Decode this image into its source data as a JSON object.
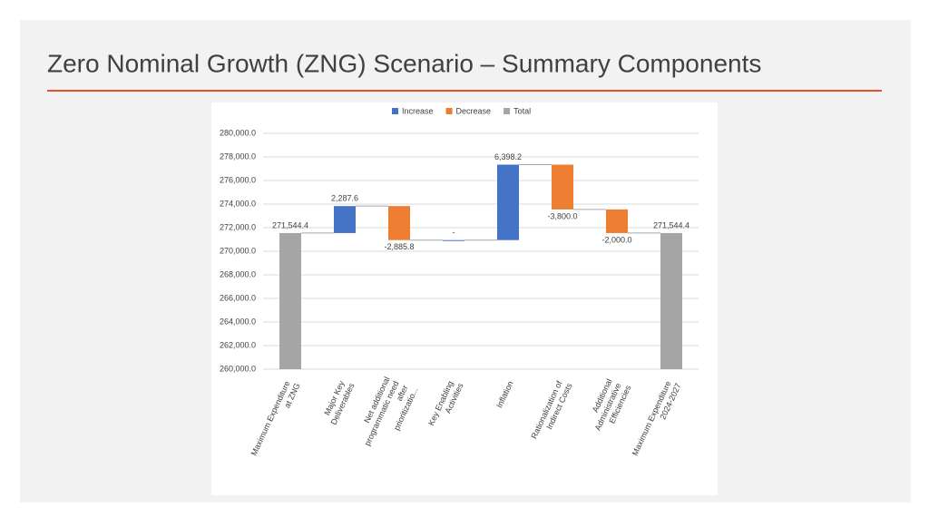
{
  "header": {
    "title": "Zero Nominal Growth (ZNG) Scenario – Summary Components"
  },
  "chart_data": {
    "type": "waterfall",
    "categories": [
      "Maximum Expenditure at ZNG",
      "Major Key Deliverables",
      "Net additional programmatic need after prioritizatio...",
      "Key Enabling Activities",
      "Inflation",
      "Rationalization of Indirect Costs",
      "Additional Administrative Efficiencies",
      "Maximum Expenditure 2024-2027"
    ],
    "series": [
      {
        "name": "Increase",
        "color": "#4472c4",
        "values": [
          null,
          2287.6,
          null,
          0,
          6398.2,
          null,
          null,
          null
        ],
        "value_labels": [
          null,
          "2,287.6",
          null,
          "-",
          "6,398.2",
          null,
          null,
          null
        ]
      },
      {
        "name": "Decrease",
        "color": "#ed7d31",
        "values": [
          null,
          null,
          -2885.8,
          null,
          null,
          -3800.0,
          -2000.0,
          null
        ],
        "value_labels": [
          null,
          null,
          "-2,885.8",
          null,
          null,
          "-3,800.0",
          "-2,000.0",
          null
        ]
      },
      {
        "name": "Total",
        "color": "#a5a5a5",
        "values": [
          271544.4,
          null,
          null,
          null,
          null,
          null,
          null,
          271544.4
        ],
        "value_labels": [
          "271,544.4",
          null,
          null,
          null,
          null,
          null,
          null,
          "271,544.4"
        ]
      }
    ],
    "ylim": [
      260000,
      280000
    ],
    "yticks": [
      {
        "value": 260000,
        "label": "260,000.0"
      },
      {
        "value": 262000,
        "label": "262,000.0"
      },
      {
        "value": 264000,
        "label": "264,000.0"
      },
      {
        "value": 266000,
        "label": "266,000.0"
      },
      {
        "value": 268000,
        "label": "268,000.0"
      },
      {
        "value": 270000,
        "label": "270,000.0"
      },
      {
        "value": 272000,
        "label": "272,000.0"
      },
      {
        "value": 274000,
        "label": "274,000.0"
      },
      {
        "value": 276000,
        "label": "276,000.0"
      },
      {
        "value": 278000,
        "label": "278,000.0"
      },
      {
        "value": 280000,
        "label": "280,000.0"
      }
    ],
    "grid": true,
    "legend": "top"
  }
}
